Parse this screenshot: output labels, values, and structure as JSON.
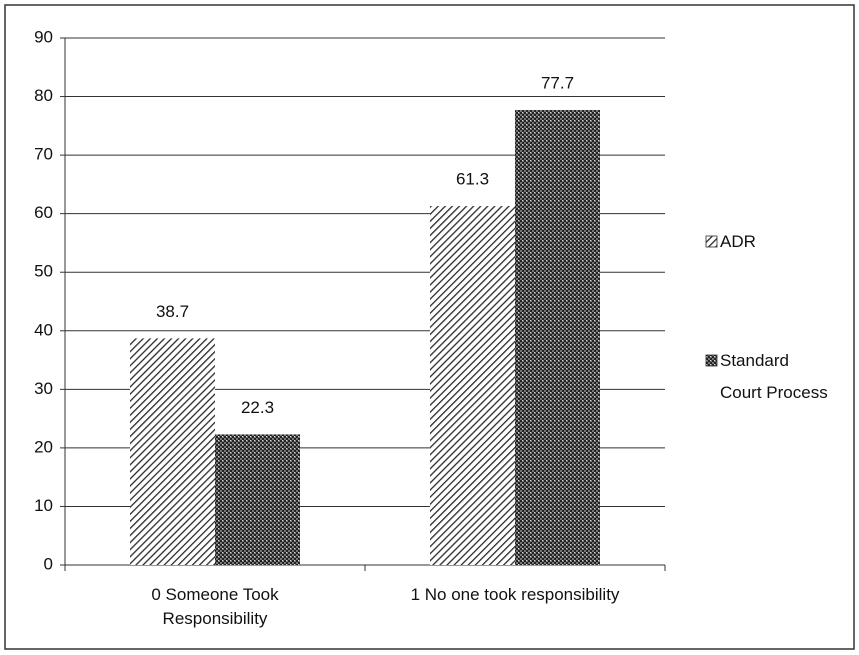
{
  "chart_data": {
    "type": "bar",
    "categories": [
      "0 Someone Took Responsibility",
      "1 No one took responsibility"
    ],
    "series": [
      {
        "name": "ADR",
        "color": "#2a2a2a",
        "pattern": "diagonal",
        "values": [
          38.7,
          61.3
        ]
      },
      {
        "name": "Standard Court Process",
        "color": "#2a2a2a",
        "pattern": "crosshatch",
        "values": [
          22.3,
          77.7
        ]
      }
    ],
    "ylim": [
      0,
      90
    ],
    "yticks": [
      0,
      10,
      20,
      30,
      40,
      50,
      60,
      70,
      80,
      90
    ],
    "grid": true,
    "legend": "right",
    "data_labels": true
  }
}
